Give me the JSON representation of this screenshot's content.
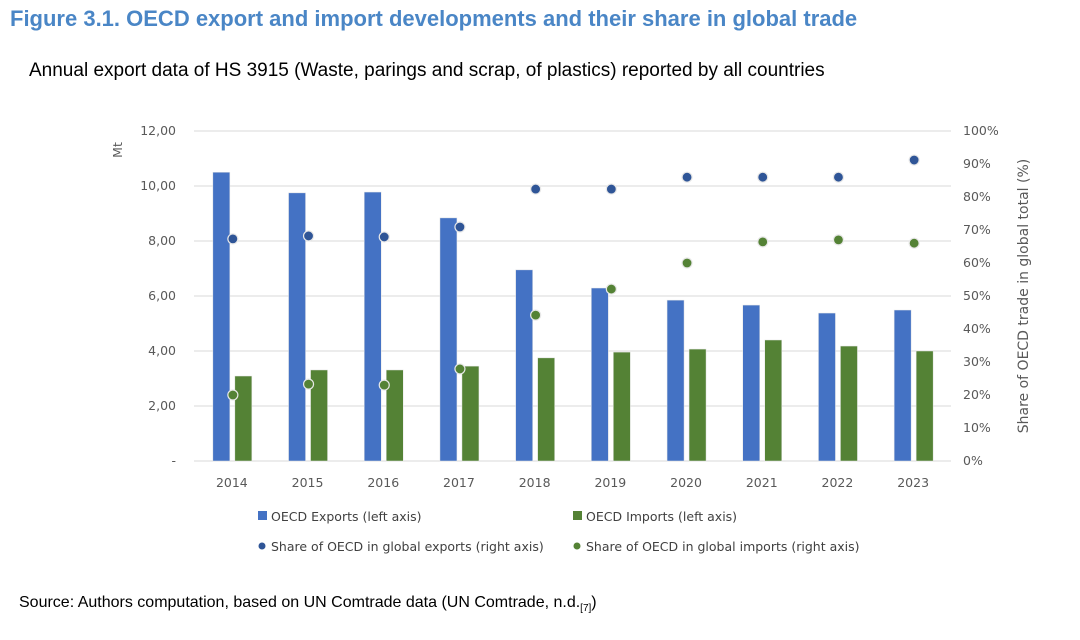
{
  "title": "Figure 3.1. OECD export and import developments and their share in global trade",
  "subtitle": "Annual export data of HS 3915 (Waste, parings and scrap, of plastics) reported by all countries",
  "source": "Source: Authors computation, based on UN Comtrade data (UN Comtrade, n.d.",
  "source_ref": "[7]",
  "source_close": ")",
  "chart_data": {
    "type": "bar",
    "categories": [
      "2014",
      "2015",
      "2016",
      "2017",
      "2018",
      "2019",
      "2020",
      "2021",
      "2022",
      "2023"
    ],
    "ylabel": "Mt",
    "y2label": "Share of OECD trade in global total (%)",
    "ylim": [
      0,
      12
    ],
    "y2lim": [
      0,
      100
    ],
    "yticks": [
      "-",
      "2,00",
      "4,00",
      "6,00",
      "8,00",
      "10,00",
      "12,00"
    ],
    "y2ticks": [
      "0%",
      "10%",
      "20%",
      "30%",
      "40%",
      "50%",
      "60%",
      "70%",
      "80%",
      "90%",
      "100%"
    ],
    "grid": true,
    "legend_placement": "bottom",
    "series": [
      {
        "name": "OECD Exports (left axis)",
        "type": "bar",
        "axis": "left",
        "color": "#4472c4",
        "values": [
          10.5,
          9.75,
          9.78,
          8.84,
          6.95,
          6.29,
          5.85,
          5.67,
          5.38,
          5.49
        ]
      },
      {
        "name": "OECD Imports (left axis)",
        "type": "bar",
        "axis": "left",
        "color": "#548235",
        "values": [
          3.09,
          3.31,
          3.31,
          3.45,
          3.75,
          3.96,
          4.07,
          4.4,
          4.18,
          4.0
        ]
      },
      {
        "name": "Share of OECD in global exports (right axis)",
        "type": "scatter",
        "axis": "right",
        "color": "#2f5597",
        "values": [
          67.3,
          68.2,
          67.9,
          70.9,
          82.4,
          82.4,
          86,
          86,
          86,
          91.2
        ]
      },
      {
        "name": "Share of OECD in global imports (right axis)",
        "type": "scatter",
        "axis": "right",
        "color": "#548235",
        "values": [
          20,
          23.3,
          23,
          27.9,
          44.2,
          52.1,
          60,
          66.4,
          67,
          66
        ]
      }
    ]
  }
}
